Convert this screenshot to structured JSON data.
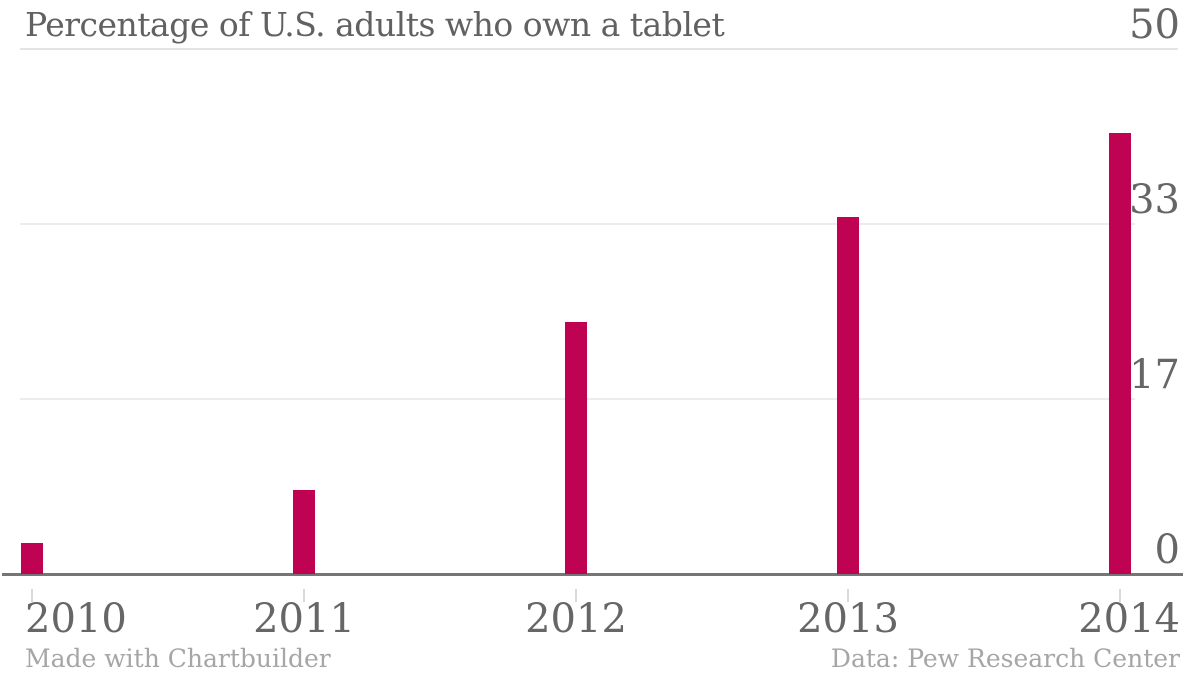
{
  "chart_data": {
    "type": "bar",
    "title": "Percentage of U.S. adults who own a tablet",
    "categories": [
      "2010",
      "2011",
      "2012",
      "2013",
      "2014"
    ],
    "values": [
      3,
      8,
      24,
      34,
      42
    ],
    "xlabel": "",
    "ylabel": "",
    "ylim": [
      0,
      50
    ],
    "yticks": [
      {
        "value": 0,
        "label": "0"
      },
      {
        "value": 16.667,
        "label": "17"
      },
      {
        "value": 33.333,
        "label": "33"
      },
      {
        "value": 50,
        "label": "50"
      }
    ],
    "ytick_side": "right",
    "grid": true,
    "legend": "none",
    "credit": "Made with Chartbuilder",
    "source": "Data: Pew Research Center"
  },
  "colors": {
    "bar": "#bf0352",
    "title_text": "#616161",
    "axis_text": "#666666",
    "footer_text": "#a6a6a6",
    "gridline": "#ececec",
    "baseline": "#757575",
    "tick": "#d9d9d9",
    "background": "#ffffff"
  }
}
